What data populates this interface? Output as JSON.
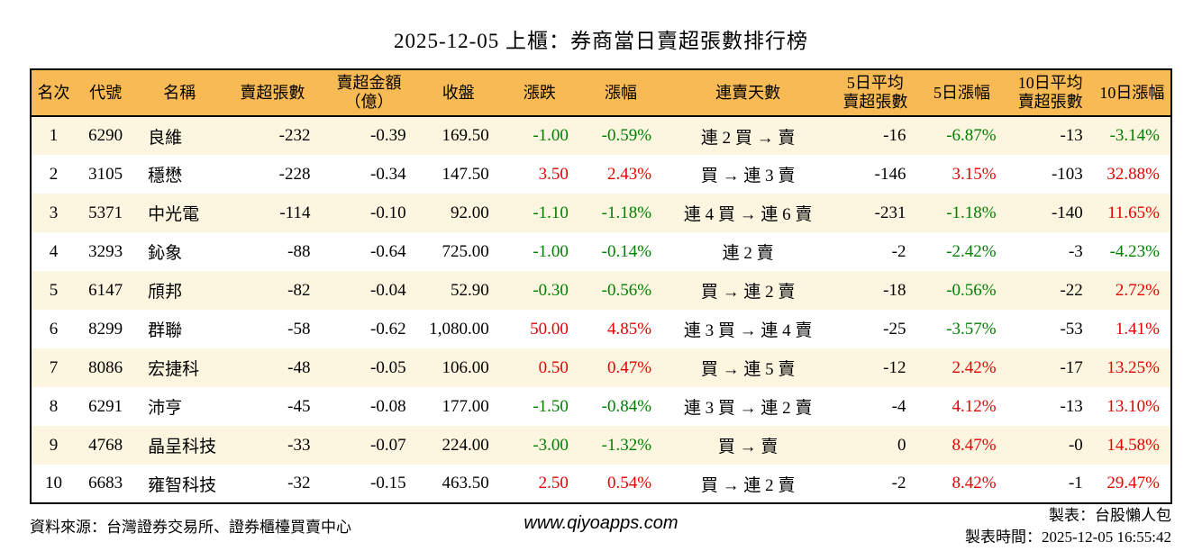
{
  "title": "2025-12-05 上櫃：券商當日賣超張數排行榜",
  "colors": {
    "header_bg": "#F8BA54",
    "row_alt_bg": "#FCF5E0",
    "up_red": "#E60000",
    "down_green": "#008000"
  },
  "table": {
    "columns": [
      {
        "key": "rank",
        "lines": [
          "名次"
        ]
      },
      {
        "key": "code",
        "lines": [
          "代號"
        ]
      },
      {
        "key": "name",
        "lines": [
          "名稱"
        ]
      },
      {
        "key": "net-sell-volume",
        "lines": [
          "賣超張數"
        ]
      },
      {
        "key": "net-sell-amount",
        "lines": [
          "賣超金額",
          "（億）"
        ]
      },
      {
        "key": "close",
        "lines": [
          "收盤"
        ]
      },
      {
        "key": "change",
        "lines": [
          "漲跌"
        ]
      },
      {
        "key": "change-pct",
        "lines": [
          "漲幅"
        ]
      },
      {
        "key": "sell-streak",
        "lines": [
          "連賣天數"
        ]
      },
      {
        "key": "avg5-net-sell",
        "lines": [
          "5日平均",
          "賣超張數"
        ]
      },
      {
        "key": "pct5",
        "lines": [
          "5日漲幅"
        ]
      },
      {
        "key": "avg10-net-sell",
        "lines": [
          "10日平均",
          "賣超張數"
        ]
      },
      {
        "key": "pct10",
        "lines": [
          "10日漲幅"
        ]
      }
    ],
    "rows": [
      [
        "1",
        "6290",
        "良維",
        "-232",
        "-0.39",
        "169.50",
        "-1.00",
        "-0.59%",
        "連 2 買 → 賣",
        "-16",
        "-6.87%",
        "-13",
        "-3.14%"
      ],
      [
        "2",
        "3105",
        "穩懋",
        "-228",
        "-0.34",
        "147.50",
        "3.50",
        "2.43%",
        "買 → 連 3 賣",
        "-146",
        "3.15%",
        "-103",
        "32.88%"
      ],
      [
        "3",
        "5371",
        "中光電",
        "-114",
        "-0.10",
        "92.00",
        "-1.10",
        "-1.18%",
        "連 4 買 → 連 6 賣",
        "-231",
        "-1.18%",
        "-140",
        "11.65%"
      ],
      [
        "4",
        "3293",
        "鈊象",
        "-88",
        "-0.64",
        "725.00",
        "-1.00",
        "-0.14%",
        "連 2 賣",
        "-2",
        "-2.42%",
        "-3",
        "-4.23%"
      ],
      [
        "5",
        "6147",
        "頎邦",
        "-82",
        "-0.04",
        "52.90",
        "-0.30",
        "-0.56%",
        "買 → 連 2 賣",
        "-18",
        "-0.56%",
        "-22",
        "2.72%"
      ],
      [
        "6",
        "8299",
        "群聯",
        "-58",
        "-0.62",
        "1,080.00",
        "50.00",
        "4.85%",
        "連 3 買 → 連 4 賣",
        "-25",
        "-3.57%",
        "-53",
        "1.41%"
      ],
      [
        "7",
        "8086",
        "宏捷科",
        "-48",
        "-0.05",
        "106.00",
        "0.50",
        "0.47%",
        "買 → 連 5 賣",
        "-12",
        "2.42%",
        "-17",
        "13.25%"
      ],
      [
        "8",
        "6291",
        "沛亨",
        "-45",
        "-0.08",
        "177.00",
        "-1.50",
        "-0.84%",
        "連 3 買 → 連 2 賣",
        "-4",
        "4.12%",
        "-13",
        "13.10%"
      ],
      [
        "9",
        "4768",
        "晶呈科技",
        "-33",
        "-0.07",
        "224.00",
        "-3.00",
        "-1.32%",
        "買 → 賣",
        "0",
        "8.47%",
        "-0",
        "14.58%"
      ],
      [
        "10",
        "6683",
        "雍智科技",
        "-32",
        "-0.15",
        "463.50",
        "2.50",
        "0.54%",
        "買 → 連 2 賣",
        "-2",
        "8.42%",
        "-1",
        "29.47%"
      ]
    ]
  },
  "footer": {
    "source": "資料來源：台灣證券交易所、證券櫃檯買賣中心",
    "website": "www.qiyoapps.com",
    "maker": "製表：台股懶人包",
    "made_time": "製表時間：2025-12-05 16:55:42"
  }
}
